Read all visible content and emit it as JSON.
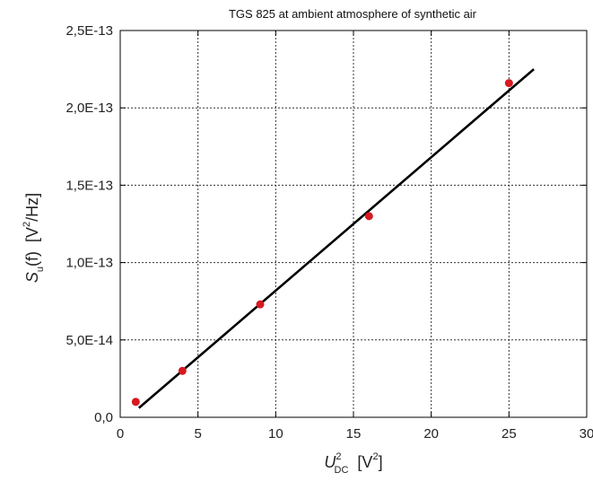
{
  "chart_data": {
    "type": "scatter",
    "title": "TGS 825 at ambient atmosphere of synthetic air",
    "xlabel": {
      "symbol": "U",
      "sup": "2",
      "sub": "DC",
      "unit": "[V",
      "unit_sup": "2",
      "unit_end": "]"
    },
    "ylabel": {
      "symbol": "S",
      "sub": "u",
      "func": "(f)",
      "unit": "[V",
      "unit_sup": "2",
      "unit_end": "/Hz]"
    },
    "xlim": [
      0,
      30
    ],
    "ylim": [
      0,
      2.5e-13
    ],
    "x_ticks": [
      0,
      5,
      10,
      15,
      20,
      25,
      30
    ],
    "y_ticks": [
      0,
      5e-14,
      1e-13,
      1.5e-13,
      2e-13,
      2.5e-13
    ],
    "x_tick_labels": [
      "0",
      "5",
      "10",
      "15",
      "20",
      "25",
      "30"
    ],
    "y_tick_labels": [
      "0,0",
      "5,0E-14",
      "1,0E-13",
      "1,5E-13",
      "2,0E-13",
      "2,5E-13"
    ],
    "grid": true,
    "points": [
      {
        "x": 1,
        "y": 1e-14
      },
      {
        "x": 4,
        "y": 3e-14
      },
      {
        "x": 9,
        "y": 7.3e-14
      },
      {
        "x": 16,
        "y": 1.3e-13
      },
      {
        "x": 25,
        "y": 2.16e-13
      }
    ],
    "fit_line": {
      "x": [
        1.2,
        26.6
      ],
      "y": [
        6e-15,
        2.25e-13
      ]
    },
    "colors": {
      "points": "#d71920",
      "line": "#000000",
      "grid": "#333333"
    }
  }
}
